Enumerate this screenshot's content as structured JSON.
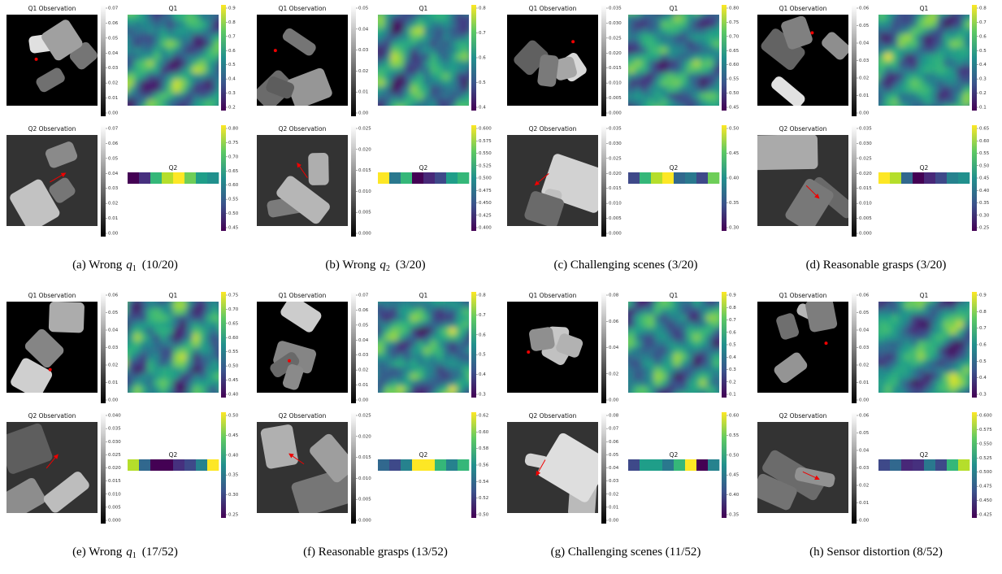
{
  "panels": [
    {
      "q1_obs_title": "Q1 Observation",
      "q1_title": "Q1",
      "q2_obs_title": "Q2 Observation",
      "q2_title": "Q2",
      "q1_obs_ticks": [
        "0.00",
        "0.01",
        "0.02",
        "0.03",
        "0.04",
        "0.05",
        "0.06",
        "0.07"
      ],
      "q1_ticks": [
        "0.2",
        "0.3",
        "0.4",
        "0.5",
        "0.6",
        "0.7",
        "0.8",
        "0.9"
      ],
      "q2_obs_ticks": [
        "0.00",
        "0.01",
        "0.02",
        "0.03",
        "0.04",
        "0.05",
        "0.06",
        "0.07"
      ],
      "q2_ticks": [
        "0.45",
        "0.50",
        "0.55",
        "0.60",
        "0.65",
        "0.70",
        "0.75",
        "0.80"
      ],
      "q2_colors": [
        "#440154",
        "#46307e",
        "#35b779",
        "#b5de2b",
        "#fde725",
        "#6ece58",
        "#1f9e89",
        "#21908d"
      ],
      "caption": {
        "text": "(a) Wrong",
        "var": "q",
        "sub": "1",
        "count": "(10/20)"
      }
    },
    {
      "q1_obs_title": "Q1 Observation",
      "q1_title": "Q1",
      "q2_obs_title": "Q2 Observation",
      "q2_title": "Q2",
      "q1_obs_ticks": [
        "0.00",
        "0.01",
        "0.02",
        "0.03",
        "0.04",
        "0.05"
      ],
      "q1_ticks": [
        "0.4",
        "0.5",
        "0.6",
        "0.7",
        "0.8"
      ],
      "q2_obs_ticks": [
        "0.000",
        "0.005",
        "0.010",
        "0.015",
        "0.020",
        "0.025"
      ],
      "q2_ticks": [
        "0.400",
        "0.425",
        "0.450",
        "0.475",
        "0.500",
        "0.525",
        "0.550",
        "0.575",
        "0.600"
      ],
      "q2_colors": [
        "#fde725",
        "#2a788e",
        "#35b779",
        "#440154",
        "#482878",
        "#3e4989",
        "#1f9e89",
        "#35b779"
      ],
      "caption": {
        "text": "(b) Wrong",
        "var": "q",
        "sub": "2",
        "count": "(3/20)"
      }
    },
    {
      "q1_obs_title": "Q1 Observation",
      "q1_title": "Q1",
      "q2_obs_title": "Q2 Observation",
      "q2_title": "Q2",
      "q1_obs_ticks": [
        "0.000",
        "0.005",
        "0.010",
        "0.015",
        "0.020",
        "0.025",
        "0.030",
        "0.035"
      ],
      "q1_ticks": [
        "0.45",
        "0.50",
        "0.55",
        "0.60",
        "0.65",
        "0.70",
        "0.75",
        "0.80"
      ],
      "q2_obs_ticks": [
        "0.000",
        "0.005",
        "0.010",
        "0.015",
        "0.020",
        "0.025",
        "0.030",
        "0.035"
      ],
      "q2_ticks": [
        "0.30",
        "0.35",
        "0.40",
        "0.45",
        "0.50"
      ],
      "q2_colors": [
        "#3e4989",
        "#35b779",
        "#b5de2b",
        "#fde725",
        "#31688e",
        "#2a788e",
        "#3e4989",
        "#6ece58"
      ],
      "caption": {
        "text": "(c) Challenging scenes (3/20)"
      }
    },
    {
      "q1_obs_title": "Q1 Observation",
      "q1_title": "Q1",
      "q2_obs_title": "Q2 Observation",
      "q2_title": "Q2",
      "q1_obs_ticks": [
        "0.00",
        "0.01",
        "0.02",
        "0.03",
        "0.04",
        "0.05",
        "0.06"
      ],
      "q1_ticks": [
        "0.1",
        "0.2",
        "0.3",
        "0.4",
        "0.5",
        "0.6",
        "0.7",
        "0.8"
      ],
      "q2_obs_ticks": [
        "0.000",
        "0.005",
        "0.010",
        "0.015",
        "0.020",
        "0.025",
        "0.030",
        "0.035"
      ],
      "q2_ticks": [
        "0.25",
        "0.30",
        "0.35",
        "0.40",
        "0.45",
        "0.50",
        "0.55",
        "0.60",
        "0.65"
      ],
      "q2_colors": [
        "#fde725",
        "#b5de2b",
        "#31688e",
        "#440154",
        "#482878",
        "#3e4989",
        "#26828e",
        "#21908d"
      ],
      "caption": {
        "text": "(d) Reasonable grasps (3/20)"
      }
    },
    {
      "q1_obs_title": "Q1 Observation",
      "q1_title": "Q1",
      "q2_obs_title": "Q2 Observation",
      "q2_title": "Q2",
      "q1_obs_ticks": [
        "0.00",
        "0.01",
        "0.02",
        "0.03",
        "0.04",
        "0.05",
        "0.06"
      ],
      "q1_ticks": [
        "0.40",
        "0.45",
        "0.50",
        "0.55",
        "0.60",
        "0.65",
        "0.70",
        "0.75"
      ],
      "q2_obs_ticks": [
        "0.000",
        "0.005",
        "0.010",
        "0.015",
        "0.020",
        "0.025",
        "0.030",
        "0.035",
        "0.040"
      ],
      "q2_ticks": [
        "0.25",
        "0.30",
        "0.35",
        "0.40",
        "0.45",
        "0.50"
      ],
      "q2_colors": [
        "#b5de2b",
        "#31688e",
        "#440154",
        "#440154",
        "#46307e",
        "#3e4989",
        "#26828e",
        "#fde725"
      ],
      "caption": {
        "text": "(e) Wrong",
        "var": "q",
        "sub": "1",
        "count": "(17/52)"
      }
    },
    {
      "q1_obs_title": "Q1 Observation",
      "q1_title": "Q1",
      "q2_obs_title": "Q2 Observation",
      "q2_title": "Q2",
      "q1_obs_ticks": [
        "0.00",
        "0.01",
        "0.02",
        "0.03",
        "0.04",
        "0.05",
        "0.06",
        "0.07"
      ],
      "q1_ticks": [
        "0.3",
        "0.4",
        "0.5",
        "0.6",
        "0.7",
        "0.8"
      ],
      "q2_obs_ticks": [
        "0.000",
        "0.005",
        "0.010",
        "0.015",
        "0.020",
        "0.025"
      ],
      "q2_ticks": [
        "0.50",
        "0.52",
        "0.54",
        "0.56",
        "0.58",
        "0.60",
        "0.62"
      ],
      "q2_colors": [
        "#31688e",
        "#3e4989",
        "#26828e",
        "#fde725",
        "#fde725",
        "#35b779",
        "#26828e",
        "#35b779"
      ],
      "caption": {
        "text": "(f) Reasonable grasps (13/52)"
      }
    },
    {
      "q1_obs_title": "Q1 Observation",
      "q1_title": "Q1",
      "q2_obs_title": "Q2 Observation",
      "q2_title": "Q2",
      "q1_obs_ticks": [
        "0.00",
        "0.02",
        "0.04",
        "0.06",
        "0.08"
      ],
      "q1_ticks": [
        "0.1",
        "0.2",
        "0.3",
        "0.4",
        "0.5",
        "0.6",
        "0.7",
        "0.8",
        "0.9"
      ],
      "q2_obs_ticks": [
        "0.00",
        "0.01",
        "0.02",
        "0.03",
        "0.04",
        "0.05",
        "0.06",
        "0.07",
        "0.08"
      ],
      "q2_ticks": [
        "0.35",
        "0.40",
        "0.45",
        "0.50",
        "0.55",
        "0.60"
      ],
      "q2_colors": [
        "#3e4989",
        "#1f9e89",
        "#1f9e89",
        "#2a788e",
        "#35b779",
        "#fde725",
        "#440154",
        "#26828e"
      ],
      "caption": {
        "text": "(g) Challenging scenes (11/52)"
      }
    },
    {
      "q1_obs_title": "Q1 Observation",
      "q1_title": "Q1",
      "q2_obs_title": "Q2 Observation",
      "q2_title": "Q2",
      "q1_obs_ticks": [
        "0.00",
        "0.01",
        "0.02",
        "0.03",
        "0.04",
        "0.05",
        "0.06"
      ],
      "q1_ticks": [
        "0.3",
        "0.4",
        "0.5",
        "0.6",
        "0.7",
        "0.8",
        "0.9"
      ],
      "q2_obs_ticks": [
        "0.00",
        "0.01",
        "0.02",
        "0.03",
        "0.04",
        "0.05",
        "0.06"
      ],
      "q2_ticks": [
        "0.425",
        "0.450",
        "0.475",
        "0.500",
        "0.525",
        "0.550",
        "0.575",
        "0.600"
      ],
      "q2_colors": [
        "#3e4989",
        "#31688e",
        "#482878",
        "#46307e",
        "#2a788e",
        "#3e4989",
        "#35b779",
        "#b5de2b"
      ],
      "caption": {
        "text": "(h) Sensor distortion (8/52)"
      }
    }
  ]
}
